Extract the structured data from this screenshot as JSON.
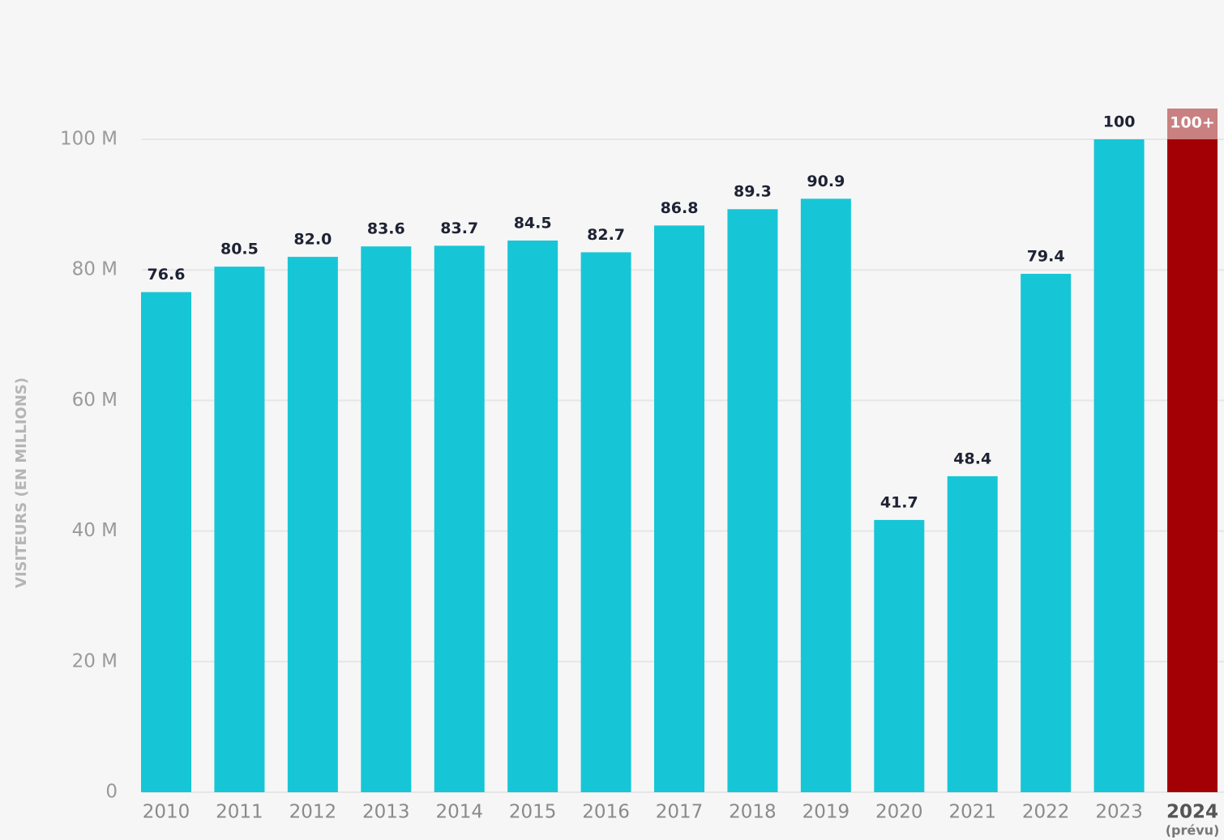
{
  "chart_data": {
    "type": "bar",
    "y_label": "VISITEURS (EN MILLIONS)",
    "categories": [
      "2010",
      "2011",
      "2012",
      "2013",
      "2014",
      "2015",
      "2016",
      "2017",
      "2018",
      "2019",
      "2020",
      "2021",
      "2022",
      "2023",
      "2024"
    ],
    "category_note": "(prévu)",
    "values": [
      76.6,
      80.5,
      82,
      83.6,
      83.7,
      84.5,
      82.7,
      86.8,
      89.3,
      90.9,
      41.7,
      48.4,
      79.4,
      100,
      100
    ],
    "value_labels": [
      "76.6",
      "80.5",
      "82.0",
      "83.6",
      "83.7",
      "84.5",
      "82.7",
      "86.8",
      "89.3",
      "90.9",
      "41.7",
      "48.4",
      "79.4",
      "100",
      "100+"
    ],
    "colors": [
      "#16c6d6",
      "#16c6d6",
      "#16c6d6",
      "#16c6d6",
      "#16c6d6",
      "#16c6d6",
      "#16c6d6",
      "#16c6d6",
      "#16c6d6",
      "#16c6d6",
      "#16c6d6",
      "#16c6d6",
      "#16c6d6",
      "#16c6d6",
      "#a30005"
    ],
    "ylim": [
      0,
      100
    ],
    "yticks": [
      0,
      {
        "value": 20,
        "label": "20 M"
      },
      {
        "value": 40,
        "label": "40 M"
      },
      {
        "value": 60,
        "label": "60 M"
      },
      {
        "value": 80,
        "label": "80 M"
      },
      {
        "value": 100,
        "label": "100 M"
      }
    ],
    "grid": true
  }
}
